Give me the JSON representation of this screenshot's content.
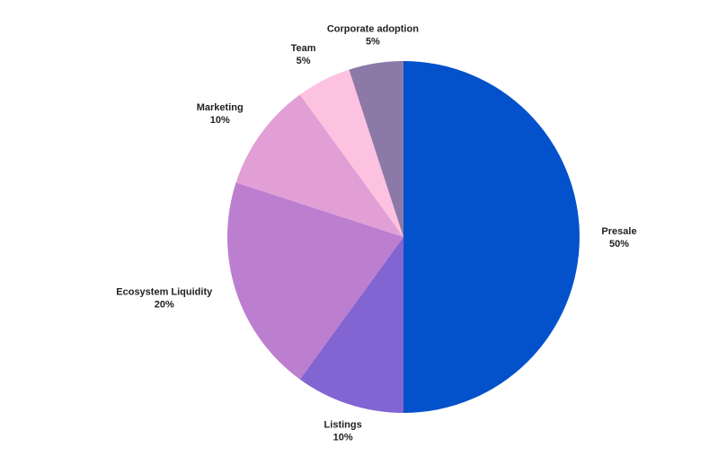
{
  "chart_data": {
    "type": "pie",
    "start_angle_deg": 0,
    "direction": "clockwise",
    "slices": [
      {
        "label": "Presale",
        "percent_label": "50%",
        "value": 50,
        "color": "#0451CC"
      },
      {
        "label": "Listings",
        "percent_label": "10%",
        "value": 10,
        "color": "#8264D3"
      },
      {
        "label": "Ecosystem Liquidity",
        "percent_label": "20%",
        "value": 20,
        "color": "#BC7ECF"
      },
      {
        "label": "Marketing",
        "percent_label": "10%",
        "value": 10,
        "color": "#E19FD6"
      },
      {
        "label": "Team",
        "percent_label": "5%",
        "value": 5,
        "color": "#FDC2E0"
      },
      {
        "label": "Corporate adoption",
        "percent_label": "5%",
        "value": 5,
        "color": "#8D79A7"
      }
    ]
  }
}
